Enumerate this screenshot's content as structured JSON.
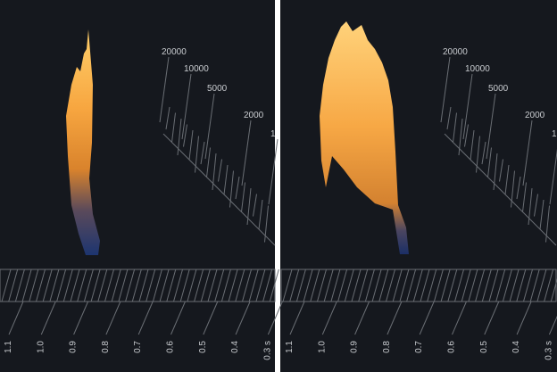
{
  "panels": [
    {
      "frequency_labels": [
        "20000",
        "10000",
        "5000",
        "2000",
        "1"
      ],
      "time_labels": [
        "1.1",
        "1.0",
        "0.9",
        "0.8",
        "0.7",
        "0.6",
        "0.5",
        "0.4",
        "0.3 s"
      ]
    },
    {
      "frequency_labels": [
        "20000",
        "10000",
        "5000",
        "2000",
        "1"
      ],
      "time_labels": [
        "1.1",
        "1.0",
        "0.9",
        "0.8",
        "0.7",
        "0.6",
        "0.5",
        "0.4",
        "0.3 s"
      ]
    }
  ]
}
